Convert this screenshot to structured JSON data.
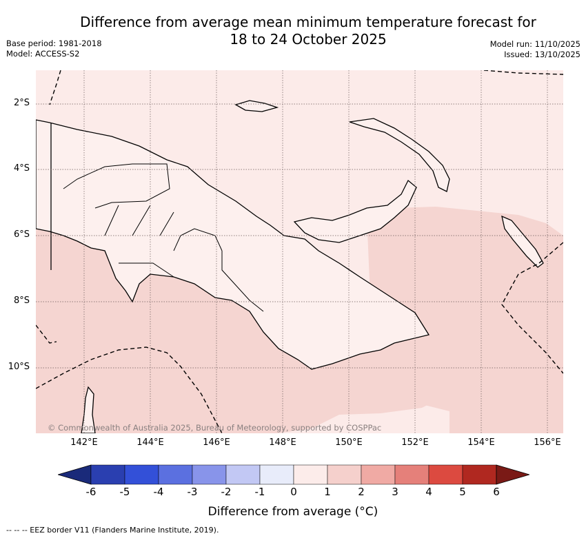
{
  "title_line1": "Difference from average mean minimum temperature forecast for",
  "title_line2": "18 to 24 October 2025",
  "base_period": "Base period: 1981-2018",
  "model": "Model: ACCESS-S2",
  "model_run": "Model run: 11/10/2025",
  "issued": "Issued: 13/10/2025",
  "lat_labels": [
    "2°S",
    "4°S",
    "6°S",
    "8°S",
    "10°S"
  ],
  "lon_labels": [
    "142°E",
    "144°E",
    "146°E",
    "148°E",
    "150°E",
    "152°E",
    "154°E",
    "156°E"
  ],
  "copyright": "© Commonwealth of Australia 2025, Bureau of Meteorology, supported by COSPPac",
  "colorbar": {
    "ticks": [
      "-6",
      "-5",
      "-4",
      "-3",
      "-2",
      "-1",
      "0",
      "1",
      "2",
      "3",
      "4",
      "5",
      "6"
    ],
    "colors": [
      "#1a2a7a",
      "#2a3fb0",
      "#3350d8",
      "#5b70e0",
      "#8894ea",
      "#c2c8f4",
      "#e8ecfa",
      "#fcecea",
      "#f5d0cc",
      "#f0aaa4",
      "#e5807a",
      "#dc4a40",
      "#b02820",
      "#7a1a16"
    ],
    "label": "Difference from average (°C)"
  },
  "map_colors": {
    "class_0_1": "#fcebe9",
    "class_1_2": "#f5d5d1",
    "land": "#fdf0ee"
  },
  "footnote": "-- -- -- EEZ border V11 (Flanders Marine Institute, 2019)."
}
